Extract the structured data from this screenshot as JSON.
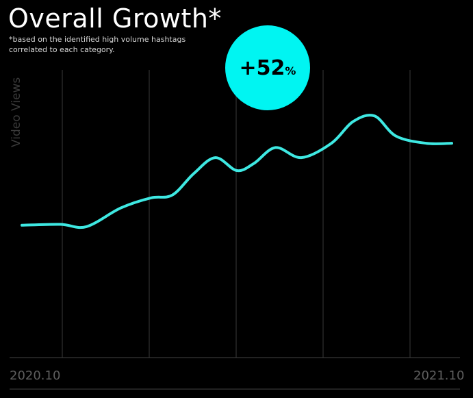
{
  "title": "Overall Growth*",
  "subtitle": "*based on the identified high volume hashtags correlated to each category.",
  "badge": {
    "value": "+52",
    "unit": "%",
    "color": "#00f5f2"
  },
  "chart_data": {
    "type": "line",
    "title": "Overall Growth*",
    "ylabel": "Video Views",
    "xlabel_start": "2020.10",
    "xlabel_end": "2021.10",
    "line_color": "#3ee8e2",
    "grid": "vertical",
    "ylim": [
      0,
      100
    ],
    "series": [
      {
        "x": [
          0,
          0.9,
          1.5,
          2.3,
          3.0,
          3.5,
          4.0,
          4.5,
          5.0,
          5.4,
          5.9,
          6.5,
          7.2,
          7.7,
          8.2,
          8.7,
          9.4,
          10.0
        ],
        "values": [
          46,
          46.3,
          45.5,
          52,
          55.5,
          56.5,
          64,
          69.5,
          65,
          67.5,
          73,
          69.5,
          74.5,
          82,
          84,
          77,
          74.5,
          74.5
        ]
      }
    ]
  }
}
